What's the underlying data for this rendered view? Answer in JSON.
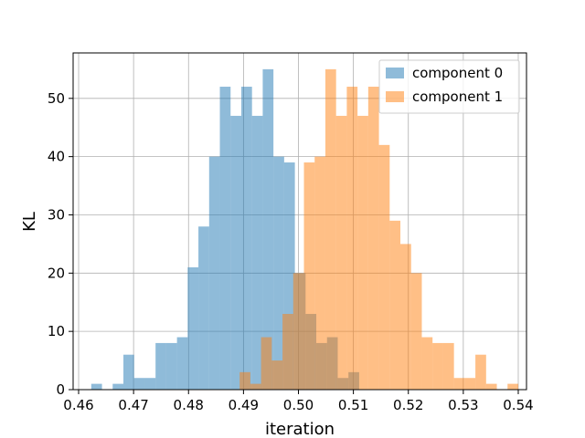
{
  "chart_data": {
    "type": "bar",
    "subtype": "histogram",
    "title": "",
    "xlabel": "iteration",
    "ylabel": "KL",
    "xlim": [
      0.459,
      0.5415
    ],
    "ylim": [
      0,
      57.8
    ],
    "xticks": [
      0.46,
      0.47,
      0.48,
      0.49,
      0.5,
      0.51,
      0.52,
      0.53,
      0.54
    ],
    "xtick_labels": [
      "0.46",
      "0.47",
      "0.48",
      "0.49",
      "0.50",
      "0.51",
      "0.52",
      "0.53",
      "0.54"
    ],
    "yticks": [
      0,
      10,
      20,
      30,
      40,
      50
    ],
    "ytick_labels": [
      "0",
      "10",
      "20",
      "30",
      "40",
      "50"
    ],
    "grid": true,
    "legend_position": "top-right",
    "series": [
      {
        "name": "component 0",
        "color": "#1f77b4",
        "alpha": 0.5,
        "bin_start": 0.4623,
        "bin_width": 0.00195,
        "counts": [
          1,
          0,
          1,
          6,
          2,
          2,
          8,
          8,
          9,
          21,
          28,
          40,
          52,
          47,
          52,
          47,
          55,
          40,
          39,
          20,
          13,
          8,
          9,
          2,
          3
        ]
      },
      {
        "name": "component 1",
        "color": "#ff7f0e",
        "alpha": 0.5,
        "bin_start": 0.4893,
        "bin_width": 0.00195,
        "counts": [
          3,
          1,
          9,
          5,
          13,
          20,
          39,
          40,
          55,
          47,
          52,
          47,
          52,
          42,
          29,
          25,
          20,
          9,
          8,
          8,
          2,
          2,
          6,
          1,
          0,
          1
        ]
      }
    ]
  }
}
